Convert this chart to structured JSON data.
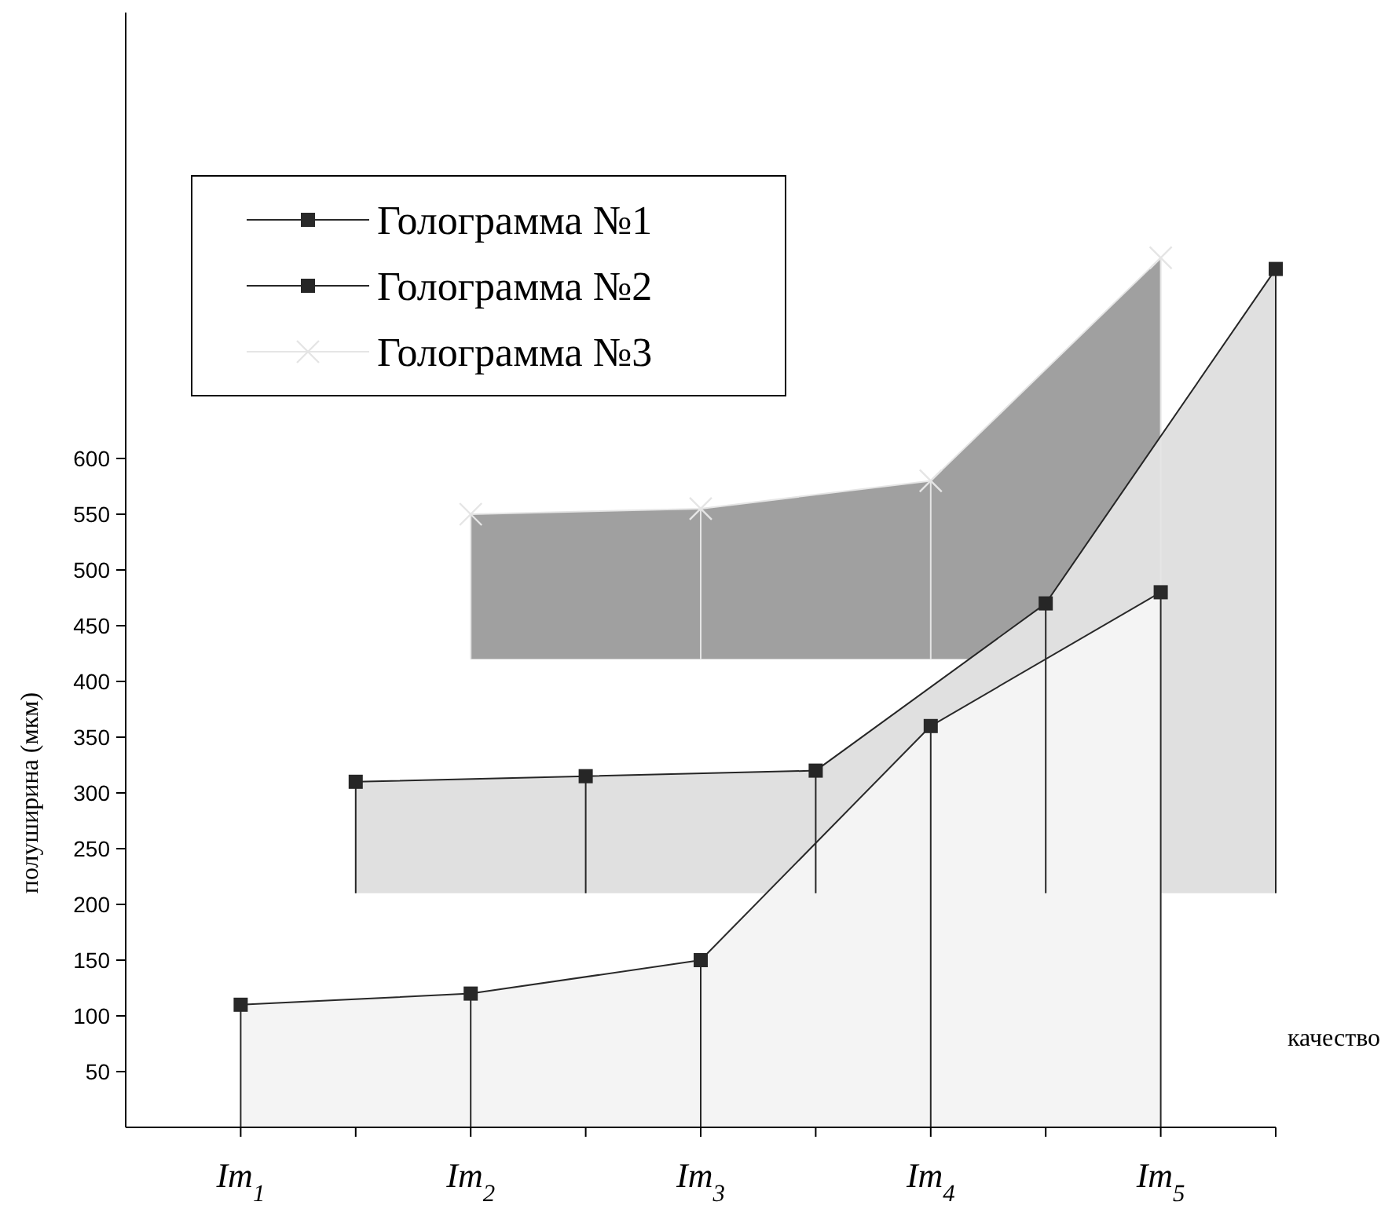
{
  "chart_data": {
    "type": "area",
    "xlabel": "качество",
    "ylabel": "полуширина (мкм)",
    "xlim": [
      0.5,
      5.5
    ],
    "ylim": [
      0,
      1000
    ],
    "xticks": [
      {
        "value": 1,
        "label": "Im$_{1}$"
      },
      {
        "value": 1.5,
        "label": null
      },
      {
        "value": 2,
        "label": "Im$_{2}$"
      },
      {
        "value": 2.5,
        "label": null
      },
      {
        "value": 3,
        "label": "Im$_{3}$"
      },
      {
        "value": 3.5,
        "label": null
      },
      {
        "value": 4,
        "label": "Im$_{4}$"
      },
      {
        "value": 4.5,
        "label": null
      },
      {
        "value": 5,
        "label": "Im$_{5}$"
      },
      {
        "value": 5.5,
        "label": null
      }
    ],
    "yticks": [
      50,
      100,
      150,
      200,
      250,
      300,
      350,
      400,
      450,
      500,
      550,
      600
    ],
    "legend": "top left",
    "grid": false,
    "series": [
      {
        "name": "Голограмма №1",
        "color": "#f4f4f4",
        "marker": "square",
        "x": [
          1,
          2,
          3,
          4,
          5
        ],
        "values": [
          110,
          120,
          150,
          360,
          480
        ],
        "errors": [
          [
            0,
            110
          ],
          [
            0,
            120
          ],
          [
            0,
            150
          ],
          [
            0,
            360
          ],
          [
            0,
            480
          ]
        ]
      },
      {
        "name": "Голограмма №2",
        "color": "#e0e0e0",
        "marker": "square",
        "x": [
          1.5,
          2.5,
          3.5,
          4.5,
          5.5
        ],
        "values": [
          310,
          315,
          320,
          470,
          770
        ],
        "errors": [
          [
            210,
            310
          ],
          [
            210,
            315
          ],
          [
            210,
            320
          ],
          [
            210,
            470
          ],
          [
            210,
            770
          ]
        ]
      },
      {
        "name": "Голограмма №3",
        "color": "#a0a0a0",
        "marker": "cross",
        "x": [
          2,
          3,
          4,
          5
        ],
        "values": [
          550,
          555,
          580,
          780
        ],
        "errors": [
          [
            420,
            550
          ],
          [
            420,
            555
          ],
          [
            420,
            580
          ],
          [
            420,
            780
          ]
        ]
      }
    ]
  }
}
